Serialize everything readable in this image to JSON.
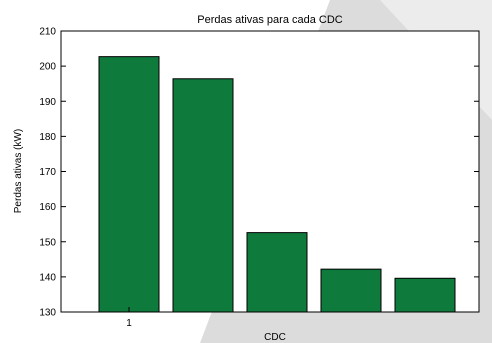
{
  "chart_data": {
    "type": "bar",
    "title": "Perdas ativas para cada CDC",
    "xlabel": "CDC",
    "ylabel": "Perdas ativas (kW)",
    "categories": [
      "1",
      "",
      "",
      "",
      ""
    ],
    "values": [
      202.7,
      196.4,
      152.6,
      142.2,
      139.6
    ],
    "ylim": [
      130,
      210
    ],
    "yticks": [
      130,
      140,
      150,
      160,
      170,
      180,
      190,
      200,
      210
    ],
    "xtick_labels": [
      "1"
    ],
    "bar_color": "#0e7a3c",
    "grid": false,
    "legend": "none"
  }
}
